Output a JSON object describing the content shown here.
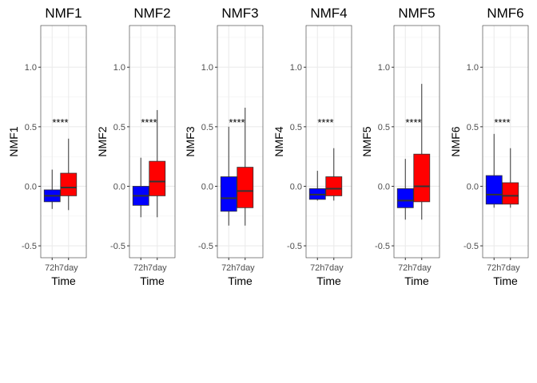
{
  "chart_data": {
    "type": "box",
    "xlabel": "Time",
    "categories": [
      "72h",
      "7day"
    ],
    "colors": {
      "72h": "#0000ff",
      "7day": "#ff0000"
    },
    "ylim": [
      -0.6,
      1.35
    ],
    "yticks": [
      -0.5,
      0.0,
      0.5,
      1.0
    ],
    "ytick_labels": [
      "-0.5",
      "0.0",
      "0.5",
      "1.0"
    ],
    "grid": true,
    "panels": [
      {
        "title": "NMF1",
        "ylabel": "NMF1",
        "annotation": "****",
        "boxes": [
          {
            "group": "72h",
            "min": -0.19,
            "q1": -0.13,
            "median": -0.08,
            "q3": -0.03,
            "max": 0.14
          },
          {
            "group": "7day",
            "min": -0.2,
            "q1": -0.08,
            "median": -0.01,
            "q3": 0.11,
            "max": 0.4
          }
        ]
      },
      {
        "title": "NMF2",
        "ylabel": "NMF2",
        "annotation": "****",
        "boxes": [
          {
            "group": "72h",
            "min": -0.26,
            "q1": -0.16,
            "median": -0.08,
            "q3": 0.0,
            "max": 0.24
          },
          {
            "group": "7day",
            "min": -0.26,
            "q1": -0.08,
            "median": 0.04,
            "q3": 0.21,
            "max": 0.64
          }
        ]
      },
      {
        "title": "NMF3",
        "ylabel": "NMF3",
        "annotation": "****",
        "boxes": [
          {
            "group": "72h",
            "min": -0.33,
            "q1": -0.21,
            "median": -0.1,
            "q3": 0.08,
            "max": 0.5
          },
          {
            "group": "7day",
            "min": -0.33,
            "q1": -0.18,
            "median": -0.04,
            "q3": 0.16,
            "max": 0.66
          }
        ]
      },
      {
        "title": "NMF4",
        "ylabel": "NMF4",
        "annotation": "****",
        "boxes": [
          {
            "group": "72h",
            "min": -0.12,
            "q1": -0.11,
            "median": -0.07,
            "q3": -0.02,
            "max": 0.13
          },
          {
            "group": "7day",
            "min": -0.12,
            "q1": -0.08,
            "median": -0.02,
            "q3": 0.08,
            "max": 0.32
          }
        ]
      },
      {
        "title": "NMF5",
        "ylabel": "NMF5",
        "annotation": "****",
        "boxes": [
          {
            "group": "72h",
            "min": -0.28,
            "q1": -0.18,
            "median": -0.12,
            "q3": -0.02,
            "max": 0.23
          },
          {
            "group": "7day",
            "min": -0.28,
            "q1": -0.13,
            "median": 0.0,
            "q3": 0.27,
            "max": 0.86
          }
        ]
      },
      {
        "title": "NMF6",
        "ylabel": "NMF6",
        "annotation": "****",
        "boxes": [
          {
            "group": "72h",
            "min": -0.18,
            "q1": -0.15,
            "median": -0.07,
            "q3": 0.09,
            "max": 0.44
          },
          {
            "group": "7day",
            "min": -0.18,
            "q1": -0.15,
            "median": -0.08,
            "q3": 0.03,
            "max": 0.32
          }
        ]
      }
    ]
  }
}
